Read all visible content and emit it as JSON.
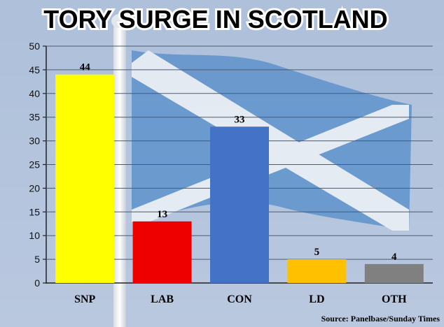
{
  "chart_data": {
    "type": "bar",
    "title": "TORY SURGE IN SCOTLAND",
    "categories": [
      "SNP",
      "LAB",
      "CON",
      "LD",
      "OTH"
    ],
    "values": [
      44,
      13,
      33,
      5,
      4
    ],
    "colors": [
      "#ffff00",
      "#ee0000",
      "#4472c4",
      "#ffc000",
      "#808080"
    ],
    "ylim": [
      0,
      50
    ],
    "yticks": [
      0,
      5,
      10,
      15,
      20,
      25,
      30,
      35,
      40,
      45,
      50
    ],
    "xlabel": "",
    "ylabel": "",
    "grid": true,
    "source": "Source: Panelbase/Sunday Times",
    "background": "Scottish Saltire flag on a flagpole"
  }
}
